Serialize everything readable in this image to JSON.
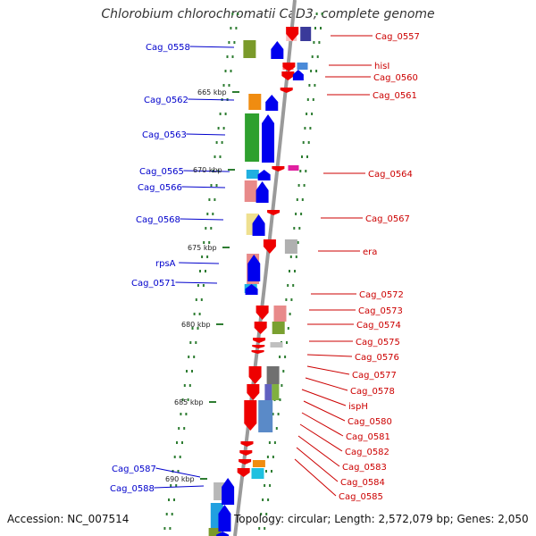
{
  "title": "Chlorobium chlorochromatii CaD3, complete genome",
  "footer": {
    "accession": "Accession: NC_007514",
    "summary": "Topology: circular; Length: 2,572,079 bp; Genes: 2,050"
  },
  "colors": {
    "left_label": "#0000cc",
    "right_label": "#cc0000",
    "backbone": "#999999",
    "forward_arrow": "#0000ee",
    "reverse_arrow": "#ee0000",
    "tick": "#2e7d32"
  },
  "kbp_ticks": [
    "665 kbp",
    "670 kbp",
    "675 kbp",
    "680 kbp",
    "685 kbp",
    "690 kbp"
  ],
  "left_genes": [
    "Cag_0558",
    "Cag_0562",
    "Cag_0563",
    "Cag_0565",
    "Cag_0566",
    "Cag_0568",
    "rpsA",
    "Cag_0571",
    "Cag_0587",
    "Cag_0588"
  ],
  "right_genes": [
    "Cag_0557",
    "hisI",
    "Cag_0560",
    "Cag_0561",
    "Cag_0564",
    "Cag_0567",
    "era",
    "Cag_0572",
    "Cag_0573",
    "Cag_0574",
    "Cag_0575",
    "Cag_0576",
    "Cag_0577",
    "Cag_0578",
    "ispH",
    "Cag_0580",
    "Cag_0581",
    "Cag_0582",
    "Cag_0583",
    "Cag_0584",
    "Cag_0585"
  ]
}
